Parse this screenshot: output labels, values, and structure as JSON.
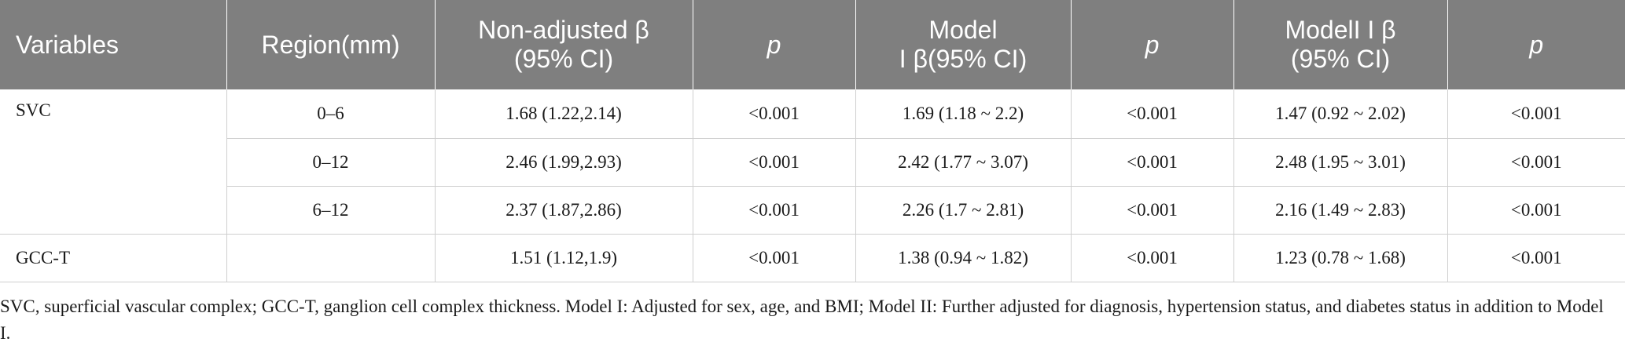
{
  "table": {
    "headers": [
      {
        "line1": "Variables",
        "line2": ""
      },
      {
        "line1": "Region(mm)",
        "line2": ""
      },
      {
        "line1": "Non-adjusted β",
        "line2": "(95% CI)"
      },
      {
        "line1": "p",
        "line2": ""
      },
      {
        "line1": "Model",
        "line2": "I β(95% CI)"
      },
      {
        "line1": "p",
        "line2": ""
      },
      {
        "line1": "ModelI I β",
        "line2": "(95% CI)"
      },
      {
        "line1": "p",
        "line2": ""
      }
    ],
    "groups": [
      {
        "variable": "SVC",
        "rows": [
          {
            "region": "0–6",
            "non_adjusted": "1.68 (1.22,2.14)",
            "p1": "<0.001",
            "model1": "1.69 (1.18 ~ 2.2)",
            "p2": "<0.001",
            "model2": "1.47 (0.92 ~ 2.02)",
            "p3": "<0.001"
          },
          {
            "region": "0–12",
            "non_adjusted": "2.46 (1.99,2.93)",
            "p1": "<0.001",
            "model1": "2.42 (1.77 ~ 3.07)",
            "p2": "<0.001",
            "model2": "2.48 (1.95 ~ 3.01)",
            "p3": "<0.001"
          },
          {
            "region": "6–12",
            "non_adjusted": "2.37 (1.87,2.86)",
            "p1": "<0.001",
            "model1": "2.26 (1.7 ~ 2.81)",
            "p2": "<0.001",
            "model2": "2.16 (1.49 ~ 2.83)",
            "p3": "<0.001"
          }
        ]
      },
      {
        "variable": "GCC-T",
        "rows": [
          {
            "region": "",
            "non_adjusted": "1.51 (1.12,1.9)",
            "p1": "<0.001",
            "model1": "1.38 (0.94 ~ 1.82)",
            "p2": "<0.001",
            "model2": "1.23 (0.78 ~ 1.68)",
            "p3": "<0.001"
          }
        ]
      }
    ]
  },
  "footnote": "SVC, superficial vascular complex; GCC-T, ganglion cell complex thickness. Model I: Adjusted for sex, age, and BMI; Model II: Further adjusted for diagnosis, hypertension status, and diabetes status in addition to Model I.",
  "colors": {
    "header_bg": "#7f7f7f",
    "header_text": "#ffffff",
    "grid": "#cfcfcf"
  }
}
